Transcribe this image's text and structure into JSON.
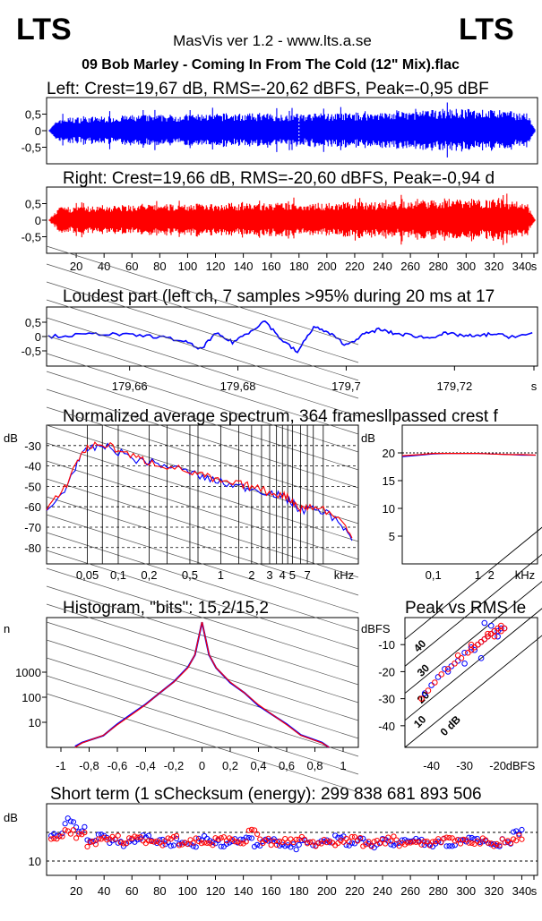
{
  "header": {
    "logo_left": "LTS",
    "logo_right": "LTS",
    "app_title": "MasVis ver 1.2 - www.lts.a.se",
    "file_title": "09 Bob Marley - Coming In From The Cold (12\" Mix).flac"
  },
  "colors": {
    "left": "#0000ff",
    "right": "#ff0000",
    "axis": "#000000",
    "grid": "#000000"
  },
  "chart_data": [
    {
      "id": "left-waveform",
      "type": "area",
      "title": "Left: Crest=19,67 dB, RMS=-20,62 dBFS, Peak=-0,95 dBF",
      "y_ticks": [
        "0,5",
        "0",
        "-0,5"
      ],
      "ylim": [
        -1,
        1
      ],
      "marker_x": 180,
      "envelope_peak": 0.9,
      "series": [
        {
          "values": [
            0.4,
            0.45,
            0.5,
            0.52,
            0.55,
            0.55,
            0.55,
            0.58,
            0.6,
            0.7,
            0.68,
            0.55
          ]
        }
      ]
    },
    {
      "id": "right-waveform",
      "type": "area",
      "title": "Right: Crest=19,66 dB, RMS=-20,60 dBFS, Peak=-0,94 d",
      "y_ticks": [
        "0,5",
        "0",
        "-0,5"
      ],
      "ylim": [
        -1,
        1
      ],
      "x_ticks": [
        "20",
        "40",
        "60",
        "80",
        "100",
        "120",
        "140",
        "160",
        "180",
        "200",
        "220",
        "240",
        "260",
        "280",
        "300",
        "320",
        "340",
        "s"
      ],
      "series": [
        {
          "values": [
            0.4,
            0.45,
            0.5,
            0.52,
            0.55,
            0.55,
            0.55,
            0.58,
            0.6,
            0.7,
            0.68,
            0.55
          ]
        }
      ]
    },
    {
      "id": "loudest-part",
      "type": "line",
      "title": "Loudest part (left  ch, 7 samples >95% during 20 ms at 17",
      "y_ticks": [
        "0,5",
        "0",
        "-0,5"
      ],
      "x_ticks": [
        "179,66",
        "179,68",
        "179,7",
        "179,72",
        "s"
      ],
      "xlim": [
        179.645,
        179.735
      ],
      "series": [
        {
          "x": [
            179.645,
            179.65,
            179.655,
            179.66,
            179.665,
            179.67,
            179.673,
            179.676,
            179.679,
            179.682,
            179.685,
            179.688,
            179.691,
            179.694,
            179.697,
            179.7,
            179.703,
            179.706,
            179.709,
            179.712,
            179.715,
            179.718,
            179.721,
            179.724,
            179.727,
            179.73,
            179.735
          ],
          "y": [
            0.0,
            0.05,
            0.1,
            0.05,
            0.0,
            -0.15,
            -0.45,
            0.1,
            -0.2,
            0.15,
            0.55,
            -0.1,
            -0.55,
            0.35,
            0.1,
            -0.3,
            0.05,
            0.25,
            0.1,
            0.05,
            -0.05,
            0.1,
            0.05,
            0.0,
            0.1,
            0.0,
            0.1
          ]
        }
      ]
    },
    {
      "id": "spectrum",
      "type": "line",
      "title": "Normalized average spectrum, 364 framesllpassed crest f",
      "ylabel": "dB",
      "y_ticks": [
        "-30",
        "-40",
        "-50",
        "-60",
        "-70",
        "-80"
      ],
      "x_ticks": [
        "0,05",
        "0,1",
        "0,2",
        "0,5",
        "1",
        "2",
        "3",
        "4",
        "5",
        "7",
        "kHz"
      ],
      "series": [
        {
          "x": [
            0.02,
            0.03,
            0.04,
            0.05,
            0.07,
            0.1,
            0.15,
            0.2,
            0.3,
            0.5,
            0.7,
            1,
            1.5,
            2,
            3,
            4,
            5,
            6,
            7,
            10,
            15,
            20
          ],
          "y": [
            -63,
            -52,
            -38,
            -32,
            -30,
            -33,
            -37,
            -38,
            -40,
            -43,
            -46,
            -48,
            -50,
            -51,
            -53,
            -55,
            -58,
            -62,
            -61,
            -62,
            -68,
            -78
          ]
        },
        {
          "x": [
            0.02,
            0.03,
            0.04,
            0.05,
            0.07,
            0.1,
            0.15,
            0.2,
            0.3,
            0.5,
            0.7,
            1,
            1.5,
            2,
            3,
            4,
            5,
            6,
            7,
            10,
            15,
            20
          ],
          "y": [
            -62,
            -51,
            -37,
            -31,
            -29,
            -32,
            -36,
            -38,
            -40,
            -43,
            -45,
            -48,
            -49,
            -50,
            -53,
            -54,
            -57,
            -61,
            -60,
            -61,
            -67,
            -77
          ]
        }
      ]
    },
    {
      "id": "crest-vs-freq",
      "type": "line",
      "ylabel": "dB",
      "y_ticks": [
        "20",
        "15",
        "10",
        "5"
      ],
      "x_ticks": [
        "0,1",
        "1",
        "2",
        "kHz"
      ],
      "series": [
        {
          "x": [
            0.02,
            0.05,
            0.1,
            0.2,
            0.5,
            1,
            2,
            5,
            10,
            20
          ],
          "y": [
            19.3,
            19.6,
            19.8,
            19.9,
            19.9,
            19.9,
            19.8,
            19.7,
            19.6,
            19.6
          ]
        },
        {
          "x": [
            0.02,
            0.05,
            0.1,
            0.2,
            0.5,
            1,
            2,
            5,
            10,
            20
          ],
          "y": [
            19.5,
            19.7,
            19.9,
            19.9,
            19.9,
            19.9,
            19.8,
            19.7,
            19.7,
            19.6
          ]
        }
      ]
    },
    {
      "id": "histogram",
      "type": "line",
      "title": "Histogram, \"bits\": 15,2/15,2",
      "ylabel": "n",
      "y_ticks": [
        "1000",
        "100",
        "10"
      ],
      "x_ticks": [
        "-1",
        "-0,8",
        "-0,6",
        "-0,4",
        "-0,2",
        "0",
        "0,2",
        "0,4",
        "0,6",
        "0,8",
        "1"
      ],
      "series": [
        {
          "x": [
            -0.9,
            -0.85,
            -0.7,
            -0.6,
            -0.5,
            -0.4,
            -0.3,
            -0.2,
            -0.1,
            -0.05,
            0,
            0.05,
            0.1,
            0.2,
            0.3,
            0.4,
            0.5,
            0.6,
            0.7,
            0.85,
            0.9
          ],
          "y": [
            1,
            1.5,
            3,
            8,
            20,
            50,
            150,
            400,
            1500,
            5000,
            100000,
            5000,
            1500,
            400,
            150,
            50,
            20,
            8,
            3,
            1.5,
            1
          ]
        }
      ]
    },
    {
      "id": "peak-vs-rms",
      "type": "scatter",
      "title": "Peak vs RMS le",
      "ylabel": "dBFS",
      "y_ticks": [
        "-10",
        "-20",
        "-30",
        "-40"
      ],
      "x_ticks": [
        "-40",
        "-30",
        "-20",
        "dBFS"
      ],
      "diag_labels": [
        "40",
        "30",
        "20",
        "10",
        "0 dB"
      ],
      "series": [
        {
          "x": [
            -42,
            -40,
            -38,
            -36,
            -34,
            -32,
            -30,
            -28,
            -27,
            -26,
            -25,
            -24,
            -23,
            -22,
            -21,
            -20,
            -19,
            -18,
            -25,
            -30,
            -35,
            -24,
            -22,
            -20
          ],
          "y": [
            -28,
            -25,
            -22,
            -19,
            -18,
            -16,
            -13,
            -11,
            -12,
            -10,
            -9,
            -8,
            -7,
            -6,
            -5,
            -5,
            -4,
            -4,
            -15,
            -17,
            -20,
            -2,
            -3,
            -7
          ]
        },
        {
          "x": [
            -43,
            -41,
            -39,
            -37,
            -35,
            -33,
            -31,
            -29,
            -28,
            -27,
            -26,
            -25,
            -24,
            -23,
            -22,
            -21,
            -20,
            -19,
            -18,
            -28,
            -32,
            -23,
            -21,
            -19
          ],
          "y": [
            -30,
            -27,
            -24,
            -21,
            -19,
            -17,
            -15,
            -13,
            -12,
            -11,
            -10,
            -9,
            -8,
            -7,
            -6,
            -5,
            -4,
            -3,
            -4,
            -10,
            -14,
            -6,
            -7,
            -5
          ]
        }
      ]
    },
    {
      "id": "short-term",
      "type": "scatter",
      "title": "Short term (1 sChecksum (energy):   299 838 681 893 506",
      "ylabel": "dB",
      "y_ticks": [
        "10"
      ],
      "x_ticks": [
        "20",
        "40",
        "60",
        "80",
        "100",
        "120",
        "140",
        "160",
        "180",
        "200",
        "220",
        "240",
        "260",
        "280",
        "300",
        "320",
        "340",
        "s"
      ],
      "ylim": [
        5,
        30
      ],
      "series": [
        {
          "x": [
            2,
            6,
            10,
            15,
            20,
            25,
            30,
            36,
            42,
            48,
            55,
            62,
            70,
            78,
            86,
            95,
            104,
            113,
            122,
            131,
            140,
            150,
            160,
            170,
            180,
            190,
            200,
            210,
            220,
            230,
            240,
            250,
            260,
            270,
            280,
            290,
            300,
            310,
            320,
            330,
            340,
            348
          ],
          "y": [
            19,
            24,
            21,
            17,
            19,
            17,
            16,
            17,
            18,
            17,
            16,
            17,
            15,
            18,
            17,
            16,
            17,
            18,
            16,
            17,
            16,
            15,
            17,
            16,
            17,
            18,
            16,
            17,
            15,
            17,
            16,
            17,
            18,
            16,
            17,
            16,
            17,
            18,
            17,
            16,
            17,
            20
          ]
        },
        {
          "x": [
            4,
            8,
            12,
            17,
            22,
            27,
            33,
            39,
            45,
            51,
            58,
            66,
            74,
            82,
            90,
            99,
            108,
            117,
            126,
            135,
            145,
            155,
            165,
            175,
            185,
            195,
            205,
            215,
            225,
            235,
            245,
            255,
            265,
            275,
            285,
            295,
            305,
            315,
            325,
            335,
            345
          ],
          "y": [
            18,
            20,
            19,
            16,
            18,
            18,
            17,
            18,
            17,
            16,
            18,
            16,
            17,
            16,
            18,
            17,
            16,
            20,
            17,
            16,
            17,
            18,
            16,
            17,
            16,
            17,
            18,
            16,
            17,
            18,
            16,
            17,
            16,
            17,
            18,
            17,
            16,
            17,
            16,
            17,
            18
          ]
        }
      ]
    }
  ]
}
